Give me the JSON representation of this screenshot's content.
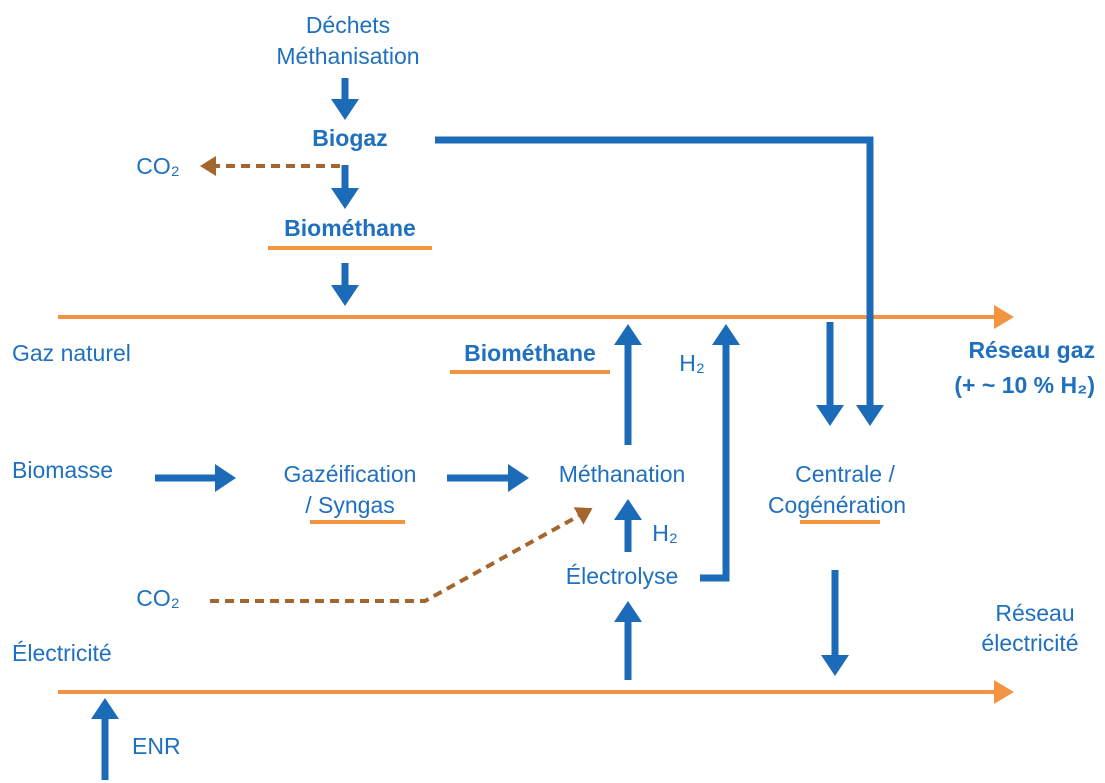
{
  "nodes": [
    {
      "id": "dechets",
      "lines": [
        "Déchets",
        "Méthanisation"
      ]
    },
    {
      "id": "biogaz",
      "lines": [
        "Biogaz"
      ]
    },
    {
      "id": "co2-top",
      "lines": [
        "CO₂"
      ]
    },
    {
      "id": "biomethane-top",
      "lines": [
        "Biométhane"
      ]
    },
    {
      "id": "gaz-naturel",
      "lines": [
        "Gaz naturel"
      ]
    },
    {
      "id": "biomethane-mid",
      "lines": [
        "Biométhane"
      ]
    },
    {
      "id": "h2-right",
      "lines": [
        "H₂"
      ]
    },
    {
      "id": "reseau-gaz",
      "lines": [
        "Réseau gaz",
        "(+ ~ 10 % H₂)"
      ]
    },
    {
      "id": "biomasse",
      "lines": [
        "Biomasse"
      ]
    },
    {
      "id": "gazeification",
      "lines": [
        "Gazéification",
        "/ Syngas"
      ]
    },
    {
      "id": "methanation",
      "lines": [
        "Méthanation"
      ]
    },
    {
      "id": "h2-mid",
      "lines": [
        "H₂"
      ]
    },
    {
      "id": "electrolyse",
      "lines": [
        "Électrolyse"
      ]
    },
    {
      "id": "centrale",
      "lines": [
        "Centrale /",
        "Cogénération"
      ]
    },
    {
      "id": "co2-bottom",
      "lines": [
        "CO₂"
      ]
    },
    {
      "id": "reseau-elec",
      "lines": [
        "Réseau",
        "électricité"
      ]
    },
    {
      "id": "electricite",
      "lines": [
        "Électricité"
      ]
    },
    {
      "id": "enr",
      "lines": [
        "ENR"
      ]
    }
  ]
}
